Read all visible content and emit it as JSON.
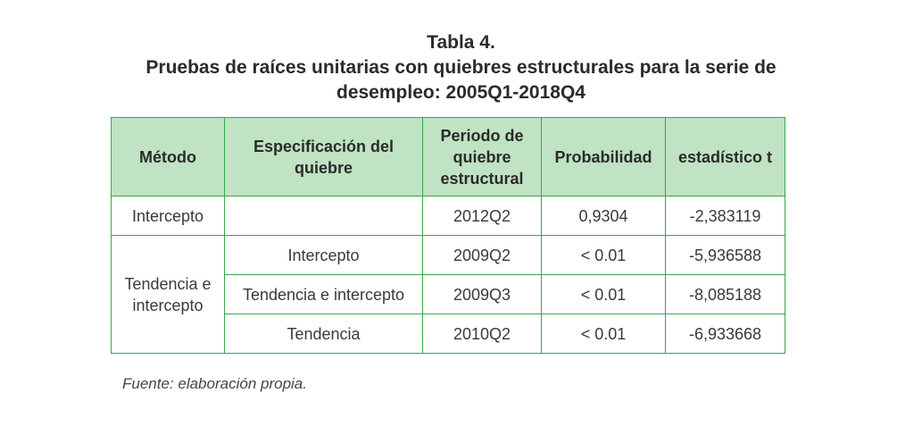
{
  "caption": {
    "label": "Tabla 4.",
    "title_line1": "Pruebas de raíces unitarias con quiebres estructurales para la serie de",
    "title_line2": "desempleo: 2005Q1-2018Q4"
  },
  "table": {
    "headers": {
      "metodo": "Método",
      "especificacion": "Especificación del quiebre",
      "periodo": "Periodo de quiebre estructural",
      "probabilidad": "Probabilidad",
      "estadistico": "estadístico t"
    },
    "rows": [
      {
        "metodo": "Intercepto",
        "especificacion": "",
        "periodo": "2012Q2",
        "probabilidad": "0,9304",
        "estadistico": "-2,383119"
      },
      {
        "metodo": "Tendencia e intercepto",
        "especificacion": "Intercepto",
        "periodo": "2009Q2",
        "probabilidad": "< 0.01",
        "estadistico": "-5,936588"
      },
      {
        "especificacion": "Tendencia e intercepto",
        "periodo": "2009Q3",
        "probabilidad": "< 0.01",
        "estadistico": "-8,085188"
      },
      {
        "especificacion": "Tendencia",
        "periodo": "2010Q2",
        "probabilidad": "< 0.01",
        "estadistico": "-6,933668"
      }
    ]
  },
  "source": "Fuente: elaboración propia."
}
